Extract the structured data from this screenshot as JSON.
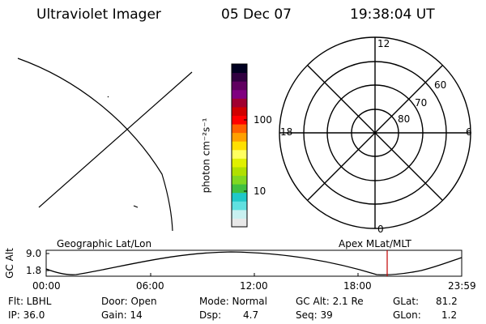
{
  "header": {
    "title": "Ultraviolet Imager",
    "date": "05 Dec 07",
    "time": "19:38:04 UT"
  },
  "colorbar": {
    "unit_label": "photon cm⁻²s⁻¹",
    "tick_high": "100",
    "tick_low": "10",
    "colors": [
      "#e8e8e8",
      "#c8f0f0",
      "#60e0e0",
      "#20c8c8",
      "#40c040",
      "#80d820",
      "#b0e000",
      "#e0f000",
      "#ffff60",
      "#ffe000",
      "#ffa000",
      "#ff6000",
      "#ff0000",
      "#d00000",
      "#a00030",
      "#800080",
      "#600060",
      "#300040",
      "#000020"
    ]
  },
  "polar_grid": {
    "labels": {
      "top": "12",
      "bottom": "0",
      "left": "18",
      "right": "6"
    },
    "lat_labels": [
      "60",
      "70",
      "80"
    ]
  },
  "altitude_panel": {
    "ylabel": "GC Alt",
    "ytick_high": "9.0",
    "ytick_low": "1.8",
    "left_title": "Geographic Lat/Lon",
    "right_title": "Apex MLat/MLT",
    "xticks": [
      "00:00",
      "06:00",
      "12:00",
      "18:00",
      "23:59"
    ]
  },
  "footer": {
    "filter": "Flt: LBHL",
    "ip": "IP: 36.0",
    "door": "Door: Open",
    "gain": "Gain: 14",
    "mode": "Mode: Normal",
    "dsp_label": "Dsp:",
    "dsp_value": "4.7",
    "gc_alt": "GC Alt: 2.1 Re",
    "seq": "Seq: 39",
    "glat_label": "GLat:",
    "glat_value": "81.2",
    "glon_label": "GLon:",
    "glon_value": "1.2"
  }
}
